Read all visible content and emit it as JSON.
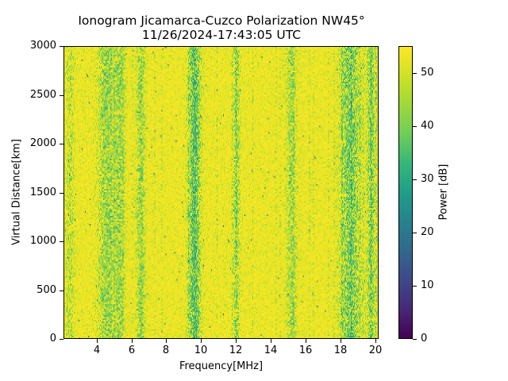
{
  "chart_data": {
    "type": "heatmap",
    "title": "Ionogram Jicamarca-Cuzco Polarization NW45°",
    "subtitle": "11/26/2024-17:43:05 UTC",
    "xlabel": "Frequency[MHz]",
    "ylabel": "Virtual Distance[km]",
    "xlim": [
      2.1,
      20.2
    ],
    "ylim": [
      0,
      3000
    ],
    "x_ticks": [
      4,
      6,
      8,
      10,
      12,
      14,
      16,
      18,
      20
    ],
    "y_ticks": [
      0,
      500,
      1000,
      1500,
      2000,
      2500,
      3000
    ],
    "colorbar": {
      "label": "Power [dB]",
      "colormap": "viridis",
      "range": [
        0,
        55
      ],
      "ticks": [
        0,
        10,
        20,
        30,
        40,
        50
      ]
    },
    "grid": false,
    "description": "Mostly saturated (~50-55 dB) noise field with vertical interference bands of lower power (~35-45 dB) at distinct frequencies; no clear ionospheric trace.",
    "bands": [
      {
        "center_mhz": 2.4,
        "width_mhz": 0.5,
        "strength": 0.35
      },
      {
        "center_mhz": 4.5,
        "width_mhz": 1.0,
        "strength": 0.55
      },
      {
        "center_mhz": 5.3,
        "width_mhz": 0.6,
        "strength": 0.5
      },
      {
        "center_mhz": 6.5,
        "width_mhz": 0.5,
        "strength": 0.55
      },
      {
        "center_mhz": 9.6,
        "width_mhz": 0.7,
        "strength": 0.85
      },
      {
        "center_mhz": 12.0,
        "width_mhz": 0.4,
        "strength": 0.5
      },
      {
        "center_mhz": 15.2,
        "width_mhz": 0.6,
        "strength": 0.5
      },
      {
        "center_mhz": 18.6,
        "width_mhz": 1.2,
        "strength": 0.7
      },
      {
        "center_mhz": 19.8,
        "width_mhz": 0.5,
        "strength": 0.6
      }
    ]
  }
}
